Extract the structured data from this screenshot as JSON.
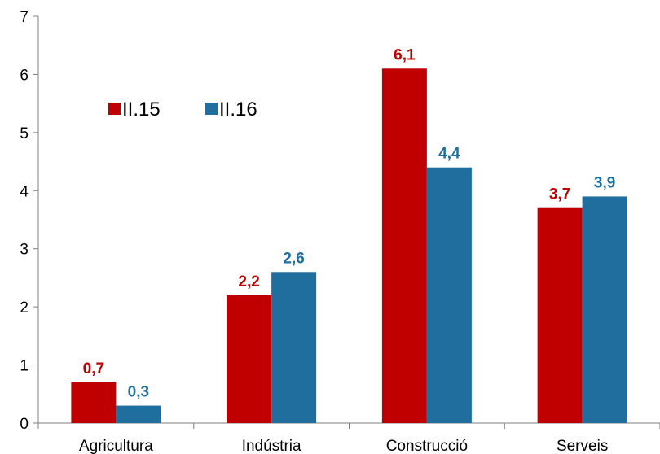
{
  "chart_data": {
    "type": "bar",
    "categories": [
      "Agricultura",
      "Indústria",
      "Construcció",
      "Serveis"
    ],
    "series": [
      {
        "name": "II.15",
        "color": "#C00000",
        "values": [
          0.7,
          2.2,
          6.1,
          3.7
        ],
        "labels": [
          "0,7",
          "2,2",
          "6,1",
          "3,7"
        ]
      },
      {
        "name": "II.16",
        "color": "#1F6E9E",
        "values": [
          0.3,
          2.6,
          4.4,
          3.9
        ],
        "labels": [
          "0,3",
          "2,6",
          "4,4",
          "3,9"
        ]
      }
    ],
    "yticks": [
      "0",
      "1",
      "2",
      "3",
      "4",
      "5",
      "6",
      "7"
    ],
    "ylim": [
      0,
      7
    ],
    "grid": false,
    "legend": "top-left"
  }
}
